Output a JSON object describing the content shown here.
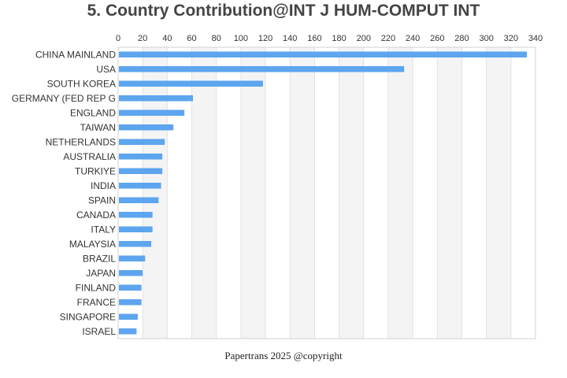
{
  "chart_data": {
    "type": "bar",
    "orientation": "horizontal",
    "title": "5. Country Contribution@INT J HUM-COMPUT INT",
    "categories": [
      "CHINA MAINLAND",
      "USA",
      "SOUTH KOREA",
      "GERMANY (FED REP G",
      "ENGLAND",
      "TAIWAN",
      "NETHERLANDS",
      "AUSTRALIA",
      "TURKIYE",
      "INDIA",
      "SPAIN",
      "CANADA",
      "ITALY",
      "MALAYSIA",
      "BRAZIL",
      "JAPAN",
      "FINLAND",
      "FRANCE",
      "SINGAPORE",
      "ISRAEL"
    ],
    "values": [
      333,
      233,
      118,
      61,
      54,
      45,
      38,
      36,
      36,
      35,
      33,
      28,
      28,
      27,
      22,
      20,
      19,
      19,
      16,
      15
    ],
    "xlim": [
      0,
      340
    ],
    "xticks": [
      0,
      20,
      40,
      60,
      80,
      100,
      120,
      140,
      160,
      180,
      200,
      220,
      240,
      260,
      280,
      300,
      320,
      340
    ],
    "x_axis_position": "top",
    "grid": "alternating vertical bands",
    "bar_color": "#5DA5EE",
    "band_color": "#F4F4F4"
  },
  "footer": "Papertrans 2025 @copyright"
}
